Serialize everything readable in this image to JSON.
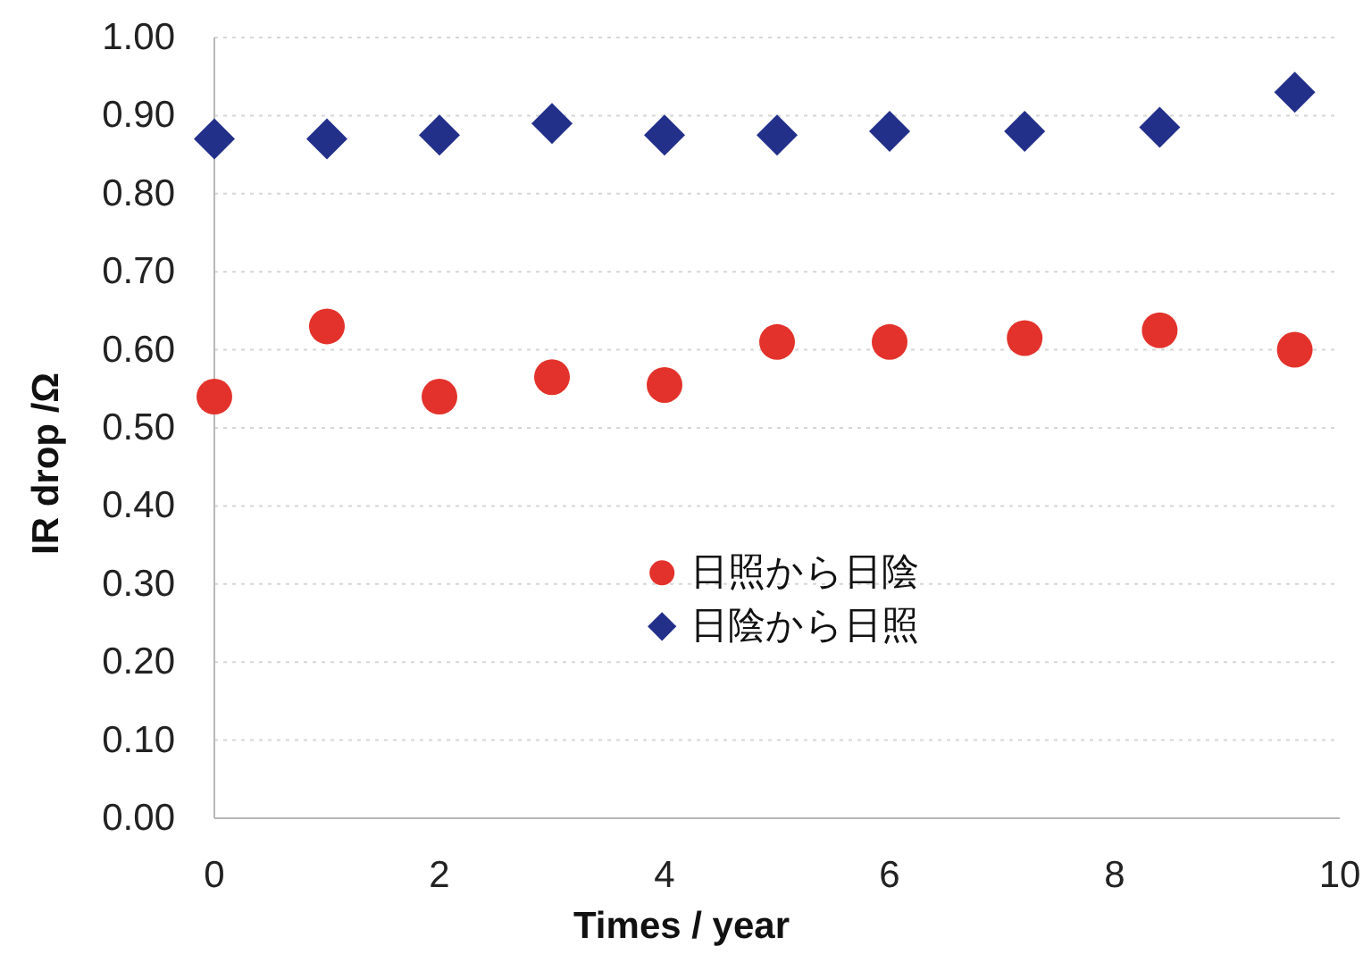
{
  "chart_data": {
    "type": "scatter",
    "xlabel": "Times / year",
    "ylabel": "IR drop /Ω",
    "x": [
      0,
      1,
      2,
      3,
      4,
      5,
      6,
      7.2,
      8.4,
      9.6
    ],
    "series": [
      {
        "name": "日照から日陰",
        "color": "#e3322b",
        "marker": "circle",
        "values": [
          0.54,
          0.63,
          0.54,
          0.565,
          0.555,
          0.61,
          0.61,
          0.615,
          0.625,
          0.6
        ]
      },
      {
        "name": "日陰から日照",
        "color": "#23308a",
        "marker": "diamond",
        "values": [
          0.87,
          0.87,
          0.875,
          0.89,
          0.875,
          0.875,
          0.88,
          0.88,
          0.885,
          0.93
        ]
      }
    ],
    "xlim": [
      0,
      10
    ],
    "ylim": [
      0,
      1
    ],
    "xticks": [
      0,
      2,
      4,
      6,
      8,
      10
    ],
    "yticks": [
      {
        "value": 0,
        "label": "0.00"
      },
      {
        "value": 0.1,
        "label": "0.10"
      },
      {
        "value": 0.2,
        "label": "0.20"
      },
      {
        "value": 0.3,
        "label": "0.30"
      },
      {
        "value": 0.4,
        "label": "0.40"
      },
      {
        "value": 0.5,
        "label": "0.50"
      },
      {
        "value": 0.6,
        "label": "0.60"
      },
      {
        "value": 0.7,
        "label": "0.70"
      },
      {
        "value": 0.8,
        "label": "0.80"
      },
      {
        "value": 0.9,
        "label": "0.90"
      },
      {
        "value": 1,
        "label": "1.00"
      }
    ],
    "grid": "y",
    "legend": "bottom"
  }
}
